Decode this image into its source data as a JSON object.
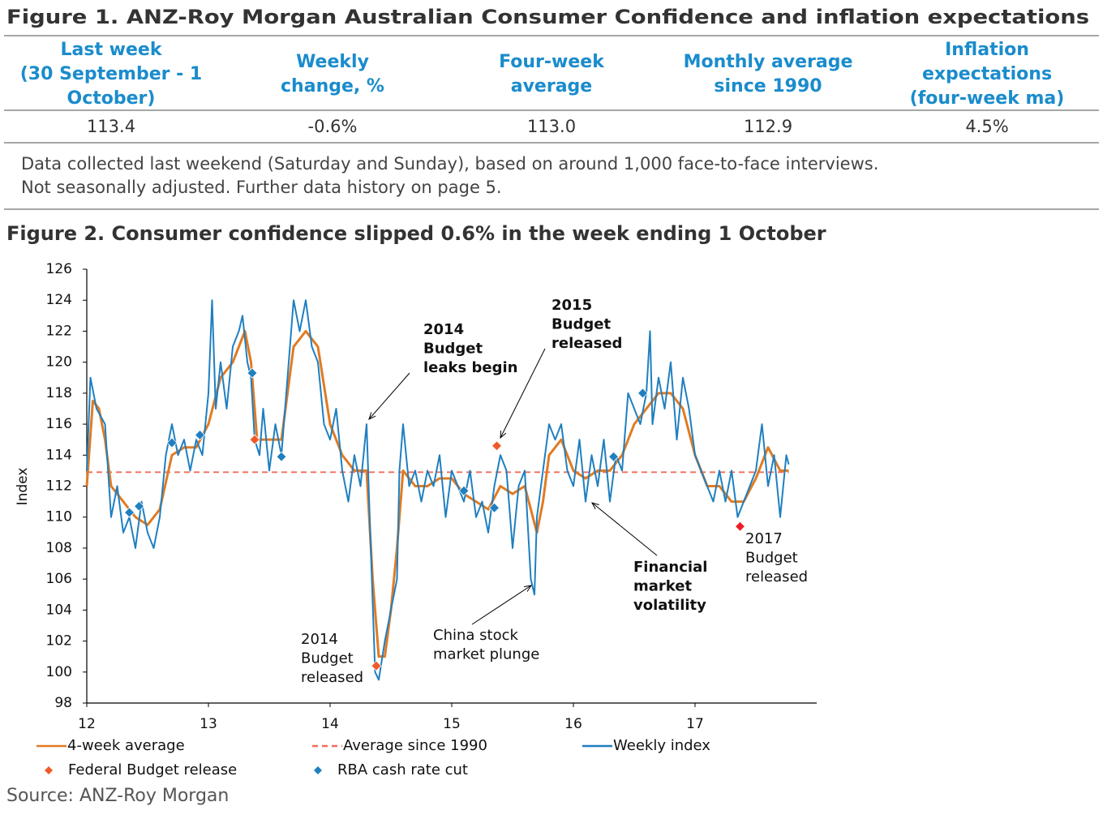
{
  "figure1": {
    "title": "Figure 1. ANZ-Roy Morgan Australian Consumer Confidence and inflation expectations",
    "headers": [
      [
        "Last week",
        "(30 September - 1",
        "October)"
      ],
      [
        "Weekly",
        "change, %"
      ],
      [
        "Four-week",
        "average"
      ],
      [
        "Monthly average",
        "since 1990"
      ],
      [
        "Inflation",
        "expectations",
        "(four-week ma)"
      ]
    ],
    "row": [
      "113.4",
      "-0.6%",
      "113.0",
      "112.9",
      "4.5%"
    ],
    "note": [
      "Data collected last weekend (Saturday and Sunday), based on around 1,000 face-to-face interviews.",
      "Not seasonally adjusted. Further data history on page 5."
    ]
  },
  "chart_data": {
    "type": "line",
    "title": "Figure 2. Consumer confidence slipped 0.6% in the week ending 1 October",
    "ylabel": "Index",
    "xlim": [
      12,
      18
    ],
    "ylim": [
      98,
      126
    ],
    "xticks": [
      12,
      13,
      14,
      15,
      16,
      17
    ],
    "yticks": [
      98,
      100,
      102,
      104,
      106,
      108,
      110,
      112,
      114,
      116,
      118,
      120,
      122,
      124,
      126
    ],
    "series": [
      {
        "name": "4-week average",
        "kind": "line",
        "color": "#e07b24",
        "x": [
          12.0,
          12.05,
          12.1,
          12.15,
          12.2,
          12.3,
          12.4,
          12.5,
          12.6,
          12.7,
          12.8,
          12.9,
          13.0,
          13.1,
          13.2,
          13.3,
          13.35,
          13.4,
          13.5,
          13.6,
          13.7,
          13.8,
          13.9,
          14.0,
          14.1,
          14.2,
          14.3,
          14.35,
          14.4,
          14.45,
          14.5,
          14.55,
          14.6,
          14.7,
          14.8,
          14.9,
          15.0,
          15.1,
          15.2,
          15.3,
          15.4,
          15.5,
          15.6,
          15.7,
          15.75,
          15.8,
          15.9,
          16.0,
          16.1,
          16.2,
          16.3,
          16.4,
          16.5,
          16.6,
          16.7,
          16.8,
          16.9,
          17.0,
          17.1,
          17.2,
          17.3,
          17.4,
          17.5,
          17.6,
          17.7,
          17.77
        ],
        "values": [
          112,
          117.5,
          117,
          115,
          112,
          111,
          110,
          109.5,
          110.5,
          114,
          114.5,
          114.5,
          116,
          119,
          120,
          122,
          120,
          115,
          115,
          115,
          121,
          122,
          121,
          116,
          114,
          113,
          113,
          106,
          101,
          101,
          104,
          108,
          113,
          112,
          112,
          112.5,
          112.5,
          111.5,
          111,
          110.5,
          112,
          111.5,
          112,
          109,
          111,
          114,
          115,
          113,
          112.5,
          113,
          113,
          114,
          116,
          117,
          118,
          118,
          117,
          114,
          112,
          112,
          111,
          111,
          112.5,
          114.5,
          113,
          113
        ]
      },
      {
        "name": "Average since 1990",
        "kind": "dashed",
        "color": "#f26b5b",
        "x": [
          12,
          17.77
        ],
        "values": [
          112.9,
          112.9
        ]
      },
      {
        "name": "Weekly index",
        "kind": "line",
        "color": "#1f7fc0",
        "x": [
          12.0,
          12.03,
          12.08,
          12.15,
          12.2,
          12.25,
          12.3,
          12.35,
          12.4,
          12.45,
          12.5,
          12.55,
          12.6,
          12.65,
          12.7,
          12.75,
          12.8,
          12.85,
          12.9,
          12.95,
          13.0,
          13.03,
          13.06,
          13.1,
          13.15,
          13.2,
          13.25,
          13.28,
          13.32,
          13.35,
          13.38,
          13.42,
          13.45,
          13.5,
          13.55,
          13.6,
          13.65,
          13.7,
          13.75,
          13.8,
          13.85,
          13.9,
          13.95,
          14.0,
          14.05,
          14.1,
          14.15,
          14.2,
          14.25,
          14.3,
          14.33,
          14.37,
          14.4,
          14.45,
          14.5,
          14.55,
          14.57,
          14.6,
          14.65,
          14.7,
          14.75,
          14.8,
          14.85,
          14.9,
          14.95,
          15.0,
          15.05,
          15.1,
          15.15,
          15.2,
          15.25,
          15.3,
          15.35,
          15.4,
          15.45,
          15.5,
          15.55,
          15.6,
          15.65,
          15.68,
          15.7,
          15.75,
          15.8,
          15.85,
          15.9,
          15.95,
          16.0,
          16.05,
          16.1,
          16.15,
          16.2,
          16.25,
          16.3,
          16.35,
          16.4,
          16.45,
          16.5,
          16.55,
          16.6,
          16.63,
          16.65,
          16.7,
          16.75,
          16.8,
          16.85,
          16.9,
          16.95,
          17.0,
          17.05,
          17.1,
          17.15,
          17.2,
          17.25,
          17.3,
          17.35,
          17.4,
          17.45,
          17.5,
          17.55,
          17.6,
          17.65,
          17.7,
          17.75,
          17.77
        ],
        "values": [
          113,
          119,
          117,
          116,
          110,
          112,
          109,
          110,
          108,
          111,
          109,
          108,
          110,
          114,
          116,
          114,
          115,
          113,
          115,
          114,
          118,
          124,
          117,
          120,
          117,
          121,
          122,
          123,
          120,
          119,
          115,
          114,
          117,
          113,
          116,
          114,
          119,
          124,
          122,
          124,
          121,
          120,
          116,
          115,
          117,
          113,
          111,
          114,
          112,
          116,
          109,
          100,
          99.5,
          102,
          104,
          106,
          113,
          116,
          112,
          113,
          111,
          113,
          112,
          114,
          110,
          113,
          112,
          111,
          113,
          110,
          111,
          109,
          112,
          114,
          113,
          108,
          112,
          113,
          106,
          105,
          110,
          113,
          116,
          115,
          116,
          113,
          112,
          115,
          111,
          114,
          112,
          115,
          111,
          114,
          113,
          118,
          117,
          116,
          118,
          122,
          116,
          119,
          117,
          120,
          115,
          119,
          117,
          114,
          113,
          112,
          111,
          113,
          111,
          113,
          110,
          111,
          112,
          113,
          116,
          112,
          114,
          110,
          114,
          113.4
        ]
      },
      {
        "name": "Federal Budget release",
        "kind": "marker",
        "color": "#f05a28",
        "point_colors": [
          "#f05a28",
          "#f05a28",
          "#f05a28",
          "#ee1c25"
        ],
        "x": [
          13.38,
          14.38,
          15.37,
          17.37
        ],
        "values": [
          115,
          100.4,
          114.6,
          109.4
        ]
      },
      {
        "name": "RBA cash rate cut",
        "kind": "marker",
        "color": "#1f7fc0",
        "x": [
          12.35,
          12.43,
          12.7,
          12.93,
          13.36,
          13.6,
          15.1,
          15.35,
          16.33,
          16.57
        ],
        "values": [
          110.3,
          110.7,
          114.8,
          115.3,
          119.3,
          113.9,
          111.7,
          110.6,
          113.9,
          118
        ]
      }
    ],
    "annotations": [
      [
        "2014",
        "Budget",
        "leaks begin"
      ],
      [
        "2015",
        "Budget",
        "released"
      ],
      [
        "2014",
        "Budget",
        "released"
      ],
      [
        "China stock",
        "market plunge"
      ],
      [
        "Financial",
        "market",
        "volatility"
      ],
      [
        "2017",
        "Budget",
        "released"
      ]
    ],
    "source": "Source: ANZ-Roy Morgan"
  }
}
